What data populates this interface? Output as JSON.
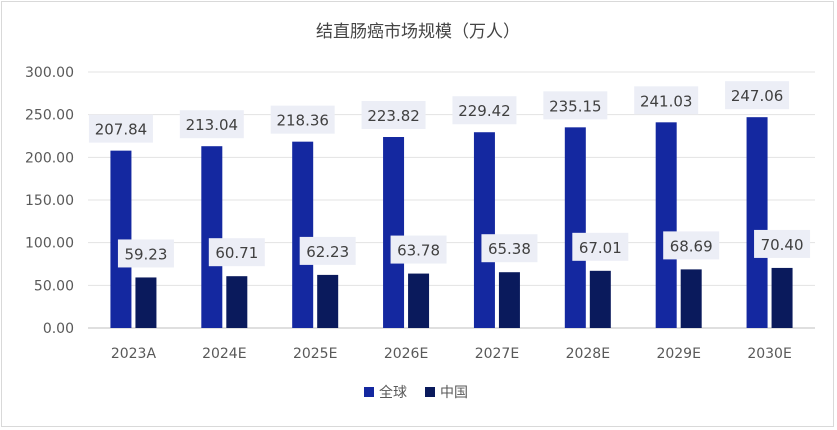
{
  "chart_data": {
    "type": "bar",
    "title": "结直肠癌市场规模（万人）",
    "categories": [
      "2023A",
      "2024E",
      "2025E",
      "2026E",
      "2027E",
      "2028E",
      "2029E",
      "2030E"
    ],
    "series": [
      {
        "name": "全球",
        "values": [
          207.84,
          213.04,
          218.36,
          223.82,
          229.42,
          235.15,
          241.03,
          247.06
        ],
        "labels": [
          "207.84",
          "213.04",
          "218.36",
          "223.82",
          "229.42",
          "235.15",
          "241.03",
          "247.06"
        ],
        "color": "#1428a0"
      },
      {
        "name": "中国",
        "values": [
          59.23,
          60.71,
          62.23,
          63.78,
          65.38,
          67.01,
          68.69,
          70.4
        ],
        "labels": [
          "59.23",
          "60.71",
          "62.23",
          "63.78",
          "65.38",
          "67.01",
          "68.69",
          "70.40"
        ],
        "color": "#0a1a5c"
      }
    ],
    "ylim": [
      0,
      300
    ],
    "yticks": [
      "0.00",
      "50.00",
      "100.00",
      "150.00",
      "200.00",
      "250.00",
      "300.00"
    ],
    "ytick_values": [
      0,
      50,
      100,
      150,
      200,
      250,
      300
    ],
    "grid": true,
    "legend": "bottom",
    "label_bg": "#eceef6"
  }
}
